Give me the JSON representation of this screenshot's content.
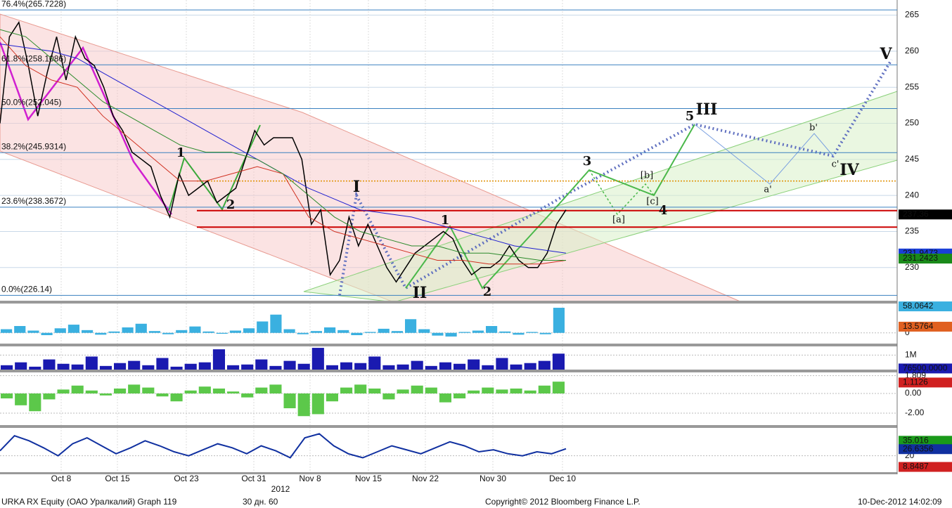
{
  "chart_data": [
    {
      "type": "line",
      "ylim": [
        225.4,
        267.1
      ],
      "yticks": [
        230,
        235,
        240,
        245,
        250,
        255,
        260,
        265
      ],
      "grid": true,
      "x_labels": [
        "Oct 8",
        "Oct 15",
        "Oct 23",
        "Oct 31",
        "Nov 8",
        "Nov 15",
        "Nov 22",
        "Nov 30",
        "Dec 10"
      ],
      "x_sublabel": "2012",
      "series": [
        {
          "color": "#000000",
          "values": [
            250,
            262,
            264,
            258,
            251,
            257,
            262,
            256,
            262,
            259,
            258,
            255,
            251,
            249,
            246,
            245,
            244,
            240,
            237,
            243,
            240,
            241,
            242,
            239,
            240,
            241,
            245,
            249,
            247,
            248,
            248,
            248,
            245,
            236,
            238,
            229,
            231,
            237,
            233,
            236,
            233,
            230,
            228,
            230,
            232,
            233,
            234,
            235,
            234,
            231,
            229,
            230,
            230,
            231,
            233,
            231,
            230,
            230,
            232,
            236,
            238
          ]
        },
        {
          "color": "#1f1fd0",
          "values": [
            261,
            260.5,
            260,
            259,
            257,
            255,
            253,
            251,
            249,
            247,
            245,
            243,
            241,
            239.5,
            238,
            237.5,
            237,
            236,
            235,
            234,
            233,
            232.5,
            232
          ]
        },
        {
          "color": "#d03020",
          "values": [
            262,
            258,
            256,
            255,
            251,
            248,
            245,
            242,
            242,
            243,
            244,
            243,
            237,
            235,
            234,
            233,
            232,
            231,
            231,
            230.5,
            230.5,
            230.5,
            231
          ]
        },
        {
          "color": "#2a8a2a",
          "values": [
            263,
            262,
            259,
            256,
            253,
            251,
            249,
            247,
            246,
            246,
            245,
            243,
            240,
            237,
            235,
            234,
            233,
            233,
            232,
            232,
            231.5,
            231,
            231
          ]
        }
      ],
      "levels": [
        {
          "value": 265.7228,
          "label": "76.4%(265.7228)"
        },
        {
          "value": 258.1086,
          "label": "61.8%(258.1086)"
        },
        {
          "value": 252.045,
          "label": "50.0%(252.045)"
        },
        {
          "value": 245.9314,
          "label": "38.2%(245.9314)"
        },
        {
          "value": 238.3672,
          "label": "23.6%(238.3672)"
        },
        {
          "value": 226.14,
          "label": "0.0%(226.14)"
        }
      ],
      "lines": [
        {
          "value": 237.9,
          "color": "#cc0000"
        },
        {
          "value": 235.6,
          "color": "#cc0000"
        },
        {
          "value": 242,
          "color": "#e09000"
        }
      ],
      "value_tags": [
        {
          "value": 237.36,
          "color": "#000000"
        },
        {
          "value": 231.9473,
          "color": "#1a3fd8"
        },
        {
          "value": 231.2423,
          "color": "#1a8a1a"
        }
      ],
      "annotations": [
        {
          "text": "I",
          "color": "#5b8fd6"
        },
        {
          "text": "II",
          "color": "#5b8fd6"
        },
        {
          "text": "III",
          "color": "#5b8fd6"
        },
        {
          "text": "IV",
          "color": "#5b8fd6"
        },
        {
          "text": "V",
          "color": "#5b8fd6"
        },
        {
          "text": "1",
          "color": "#3aa83a"
        },
        {
          "text": "2",
          "color": "#3aa83a"
        },
        {
          "text": "1",
          "color": "#3aa83a"
        },
        {
          "text": "2",
          "color": "#3aa83a"
        },
        {
          "text": "3",
          "color": "#3aa83a"
        },
        {
          "text": "4",
          "color": "#3aa83a"
        },
        {
          "text": "5",
          "color": "#3aa83a"
        },
        {
          "text": "[a]",
          "color": "#c03020"
        },
        {
          "text": "[b]",
          "color": "#c03020"
        },
        {
          "text": "[c]",
          "color": "#c03020"
        },
        {
          "text": "a'",
          "color": "#c03020"
        },
        {
          "text": "b'",
          "color": "#c03020"
        },
        {
          "text": "c'",
          "color": "#c03020"
        }
      ]
    },
    {
      "type": "bar",
      "ylim": [
        -23.5,
        64.3
      ],
      "yticks": [
        0
      ],
      "color": "#3ab0e0",
      "values": [
        8,
        15,
        5,
        -5,
        10,
        18,
        6,
        -4,
        3,
        12,
        20,
        4,
        -3,
        6,
        14,
        3,
        -2,
        5,
        10,
        25,
        40,
        8,
        -3,
        4,
        12,
        6,
        -5,
        2,
        9,
        4,
        30,
        8,
        -6,
        -8,
        2,
        5,
        15,
        3,
        -4,
        2,
        -3,
        55
      ],
      "value_tags": [
        {
          "value": 58.0642,
          "color": "#3ab0e0"
        },
        {
          "value": 13.5764,
          "color": "#e06020"
        }
      ]
    },
    {
      "type": "bar",
      "ylim": [
        0,
        1600000
      ],
      "yticks": [
        {
          "value": 1000000,
          "label": "1M"
        }
      ],
      "color": "#1a1ab0",
      "values": [
        300000,
        500000,
        200000,
        700000,
        400000,
        350000,
        900000,
        250000,
        450000,
        600000,
        300000,
        800000,
        200000,
        400000,
        500000,
        1400000,
        300000,
        350000,
        700000,
        250000,
        600000,
        400000,
        1500000,
        300000,
        500000,
        450000,
        900000,
        300000,
        350000,
        600000,
        250000,
        500000,
        400000,
        700000,
        300000,
        800000,
        350000,
        450000,
        600000,
        1100000
      ],
      "value_tags": [
        {
          "value": 76500,
          "label": "76500.0000",
          "color": "#1a1ab0"
        }
      ]
    },
    {
      "type": "bar",
      "ylim": [
        -3.21,
        2.14
      ],
      "yticks": [
        1.809,
        {
          "value": 0,
          "label": "0.00"
        },
        {
          "value": -2,
          "label": "-2.00"
        }
      ],
      "color": "#5cc84a",
      "values": [
        -0.5,
        -1.2,
        -1.8,
        -0.6,
        0.4,
        0.8,
        0.3,
        -0.2,
        0.5,
        0.9,
        0.6,
        -0.3,
        -0.8,
        0.3,
        0.7,
        0.5,
        0.2,
        -0.4,
        0.6,
        0.9,
        -1.5,
        -2.3,
        -2.1,
        -0.8,
        0.6,
        0.9,
        0.5,
        -0.6,
        0.4,
        0.8,
        0.6,
        -0.9,
        -0.5,
        0.3,
        0.6,
        0.4,
        0.5,
        0.3,
        0.8,
        1.2
      ],
      "value_tags": [
        {
          "value": 1.1126,
          "color": "#d02020"
        }
      ]
    },
    {
      "type": "line",
      "ylim": [
        3.6,
        47.9
      ],
      "yticks": [
        20
      ],
      "color": "#1030a0",
      "values": [
        25,
        40,
        35,
        28,
        20,
        32,
        38,
        30,
        22,
        28,
        35,
        30,
        24,
        20,
        26,
        32,
        28,
        22,
        30,
        25,
        18,
        38,
        42,
        30,
        22,
        18,
        24,
        30,
        26,
        22,
        28,
        34,
        30,
        24,
        26,
        22,
        20,
        24,
        22,
        27
      ],
      "value_tags": [
        {
          "value": 35.016,
          "color": "#1a9a1a"
        },
        {
          "value": 26.6356,
          "color": "#1030a0"
        },
        {
          "value": 8.8487,
          "color": "#d02020"
        }
      ]
    }
  ],
  "footer": {
    "left": "URKA RX Equity (ОАО Уралкалий) Graph 119",
    "period": "30 дн. 60",
    "copyright": "Copyright© 2012 Bloomberg Finance L.P.",
    "timestamp": "10-Dec-2012 14:02:09"
  }
}
